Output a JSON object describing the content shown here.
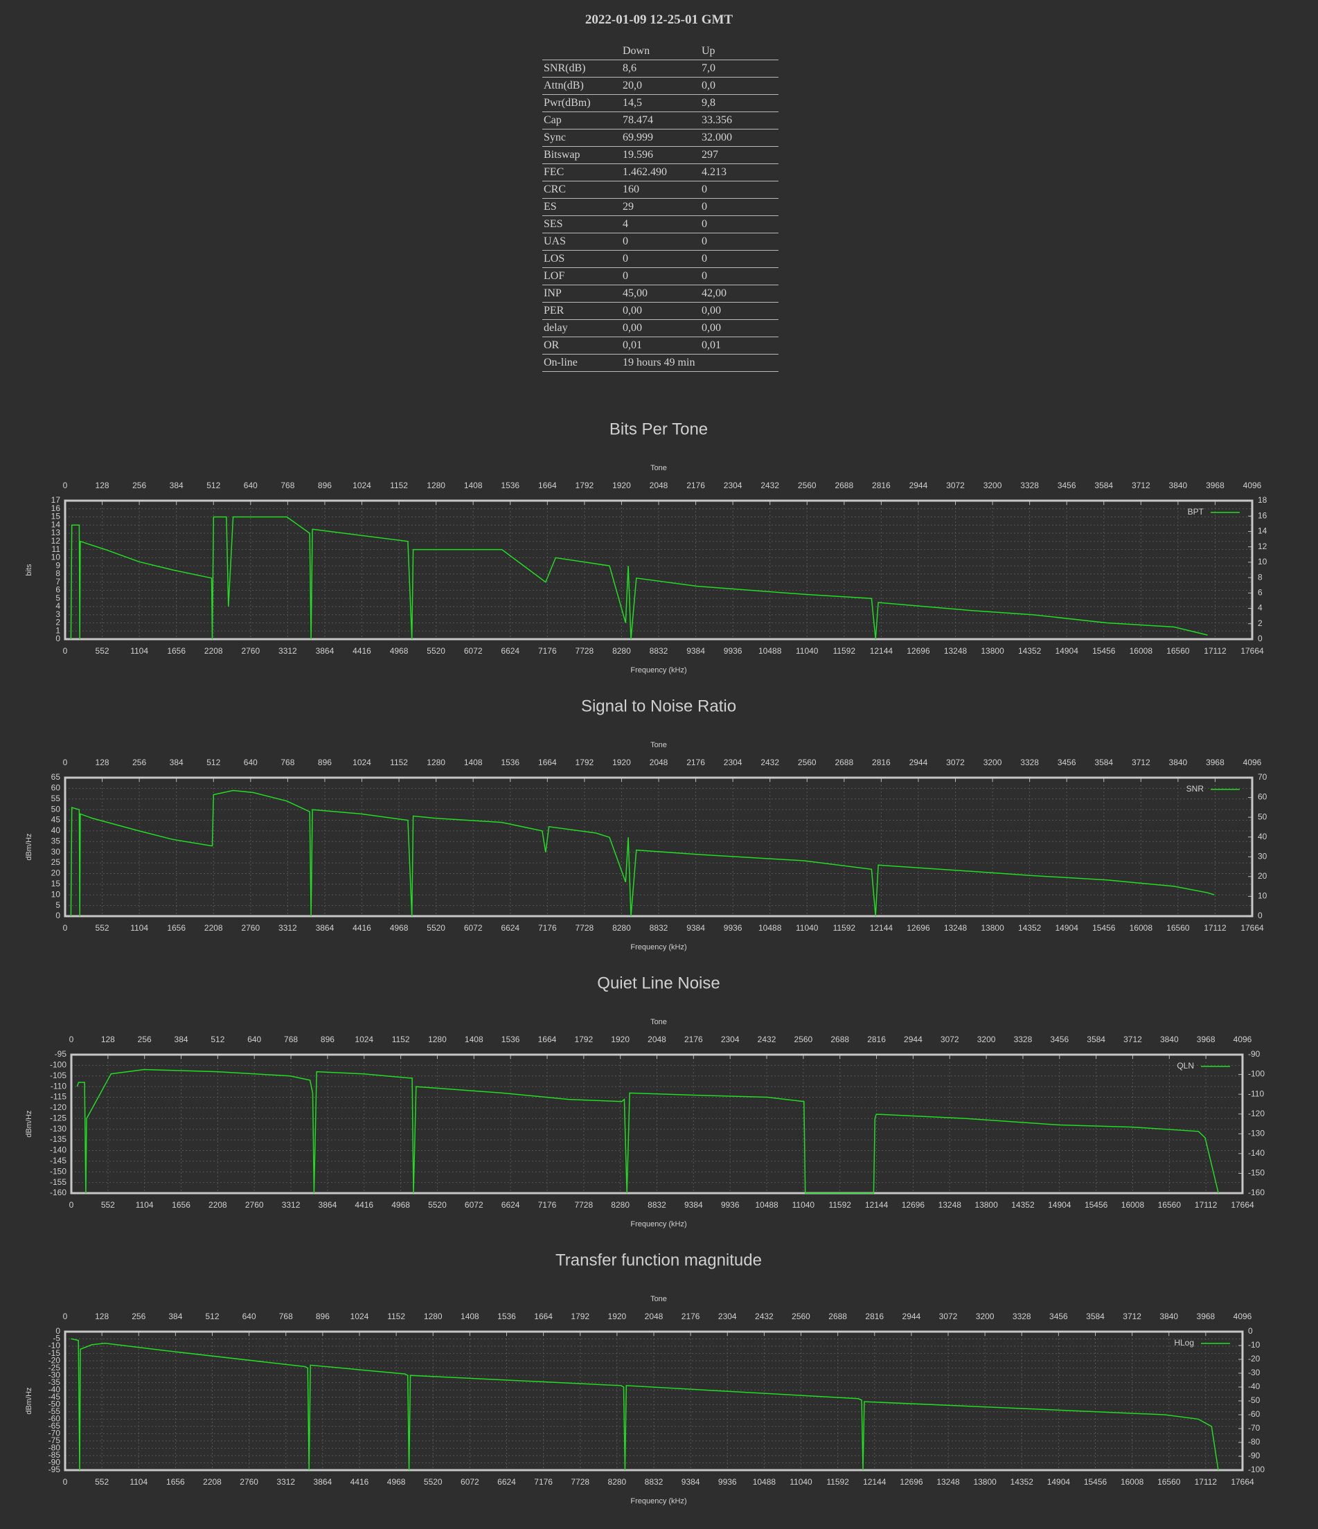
{
  "title": "2022-01-09 12-25-01 GMT",
  "table": {
    "columns": [
      "Down",
      "Up"
    ],
    "rows": [
      [
        "SNR(dB)",
        "8,6",
        "7,0"
      ],
      [
        "Attn(dB)",
        "20,0",
        "0,0"
      ],
      [
        "Pwr(dBm)",
        "14,5",
        "9,8"
      ],
      [
        "Cap",
        "78.474",
        "33.356"
      ],
      [
        "Sync",
        "69.999",
        "32.000"
      ],
      [
        "Bitswap",
        "19.596",
        "297"
      ],
      [
        "FEC",
        "1.462.490",
        "4.213"
      ],
      [
        "CRC",
        "160",
        "0"
      ],
      [
        "ES",
        "29",
        "0"
      ],
      [
        "SES",
        "4",
        "0"
      ],
      [
        "UAS",
        "0",
        "0"
      ],
      [
        "LOS",
        "0",
        "0"
      ],
      [
        "LOF",
        "0",
        "0"
      ],
      [
        "INP",
        "45,00",
        "42,00"
      ],
      [
        "PER",
        "0,00",
        "0,00"
      ],
      [
        "delay",
        "0,00",
        "0,00"
      ],
      [
        "OR",
        "0,01",
        "0,01"
      ],
      [
        "On-line",
        "19 hours 49 min"
      ]
    ]
  },
  "chart_data": [
    {
      "type": "line",
      "title": "Bits Per Tone",
      "xlabel": "Frequency (kHz)",
      "x2label": "Tone",
      "ylabel": "bits",
      "legend": "top-right",
      "grid": true,
      "xlim": [
        0,
        17664
      ],
      "xticks": [
        0,
        552,
        1104,
        1656,
        2208,
        2760,
        3312,
        3864,
        4416,
        4968,
        5520,
        6072,
        6624,
        7176,
        7728,
        8280,
        8832,
        9384,
        9936,
        10488,
        11040,
        11592,
        12144,
        12696,
        13248,
        13800,
        14352,
        14904,
        15456,
        16008,
        16560,
        17112,
        17664
      ],
      "x2lim": [
        0,
        4096
      ],
      "x2ticks": [
        0,
        128,
        256,
        384,
        512,
        640,
        768,
        896,
        1024,
        1152,
        1280,
        1408,
        1536,
        1664,
        1792,
        1920,
        2048,
        2176,
        2304,
        2432,
        2560,
        2688,
        2816,
        2944,
        3072,
        3200,
        3328,
        3456,
        3584,
        3712,
        3840,
        3968,
        4096
      ],
      "ylim": [
        0,
        17
      ],
      "yticks": [
        0,
        1,
        2,
        3,
        4,
        5,
        6,
        7,
        8,
        9,
        10,
        11,
        12,
        13,
        14,
        15,
        16,
        17
      ],
      "y2lim": [
        0,
        18
      ],
      "y2ticks": [
        0,
        2,
        4,
        6,
        8,
        10,
        12,
        14,
        16,
        18
      ],
      "x": [
        87,
        100,
        210,
        218,
        226,
        600,
        1100,
        1600,
        2180,
        2190,
        2208,
        2400,
        2430,
        2500,
        3300,
        3640,
        3660,
        3680,
        5100,
        5160,
        5180,
        6500,
        7150,
        7300,
        8100,
        8340,
        8380,
        8420,
        8500,
        9400,
        11000,
        12000,
        12060,
        12100,
        13500,
        14400,
        15500,
        16500,
        17000
      ],
      "series": [
        {
          "name": "BPT",
          "color": "#22dd22",
          "values": [
            0,
            14,
            14,
            0,
            12,
            11,
            9.5,
            8.5,
            7.5,
            0,
            15,
            15,
            4,
            15,
            15,
            13,
            0,
            13.5,
            12,
            0,
            11,
            11,
            7,
            10,
            9,
            2,
            9,
            0,
            7.5,
            6.5,
            5.5,
            5,
            0,
            4.5,
            3.5,
            3,
            2,
            1.5,
            0.5
          ]
        }
      ]
    },
    {
      "type": "line",
      "title": "Signal to Noise Ratio",
      "xlabel": "Frequency (kHz)",
      "x2label": "Tone",
      "ylabel": "dBm/Hz",
      "legend": "top-right",
      "grid": true,
      "xlim": [
        0,
        17664
      ],
      "xticks": [
        0,
        552,
        1104,
        1656,
        2208,
        2760,
        3312,
        3864,
        4416,
        4968,
        5520,
        6072,
        6624,
        7176,
        7728,
        8280,
        8832,
        9384,
        9936,
        10488,
        11040,
        11592,
        12144,
        12696,
        13248,
        13800,
        14352,
        14904,
        15456,
        16008,
        16560,
        17112,
        17664
      ],
      "x2lim": [
        0,
        4096
      ],
      "x2ticks": [
        0,
        128,
        256,
        384,
        512,
        640,
        768,
        896,
        1024,
        1152,
        1280,
        1408,
        1536,
        1664,
        1792,
        1920,
        2048,
        2176,
        2304,
        2432,
        2560,
        2688,
        2816,
        2944,
        3072,
        3200,
        3328,
        3456,
        3584,
        3712,
        3840,
        3968,
        4096
      ],
      "ylim": [
        0,
        65
      ],
      "yticks": [
        0,
        5,
        10,
        15,
        20,
        25,
        30,
        35,
        40,
        45,
        50,
        55,
        60,
        65
      ],
      "y2lim": [
        0,
        70
      ],
      "y2ticks": [
        0,
        10,
        20,
        30,
        40,
        50,
        60,
        70
      ],
      "x": [
        87,
        100,
        210,
        218,
        226,
        400,
        1100,
        1600,
        2180,
        2190,
        2208,
        2500,
        2800,
        3300,
        3640,
        3660,
        3680,
        4400,
        5100,
        5160,
        5180,
        5500,
        6500,
        7100,
        7150,
        7200,
        7900,
        8100,
        8340,
        8380,
        8420,
        8500,
        9400,
        11000,
        12000,
        12060,
        12100,
        13500,
        14400,
        15500,
        16500,
        17000,
        17100
      ],
      "series": [
        {
          "name": "SNR",
          "color": "#22dd22",
          "values": [
            0,
            51,
            50,
            0,
            48,
            46,
            40,
            36,
            33,
            33,
            57,
            59,
            58,
            54,
            49,
            0,
            50,
            48,
            45,
            0,
            47,
            46,
            44,
            40,
            30,
            42,
            39,
            37,
            16,
            37,
            0,
            31,
            29,
            26,
            22,
            0,
            24,
            21,
            19,
            17,
            14,
            11,
            10
          ]
        }
      ]
    },
    {
      "type": "line",
      "title": "Quiet Line Noise",
      "xlabel": "Frequency (kHz)",
      "x2label": "Tone",
      "ylabel": "dBm/Hz",
      "legend": "top-right",
      "grid": true,
      "xlim": [
        0,
        17664
      ],
      "xticks": [
        0,
        552,
        1104,
        1656,
        2208,
        2760,
        3312,
        3864,
        4416,
        4968,
        5520,
        6072,
        6624,
        7176,
        7728,
        8280,
        8832,
        9384,
        9936,
        10488,
        11040,
        11592,
        12144,
        12696,
        13248,
        13800,
        14352,
        14904,
        15456,
        16008,
        16560,
        17112,
        17664
      ],
      "x2lim": [
        0,
        4096
      ],
      "x2ticks": [
        0,
        128,
        256,
        384,
        512,
        640,
        768,
        896,
        1024,
        1152,
        1280,
        1408,
        1536,
        1664,
        1792,
        1920,
        2048,
        2176,
        2304,
        2432,
        2560,
        2688,
        2816,
        2944,
        3072,
        3200,
        3328,
        3456,
        3584,
        3712,
        3840,
        3968,
        4096
      ],
      "ylim": [
        -160,
        -95
      ],
      "yticks": [
        -95,
        -100,
        -105,
        -110,
        -115,
        -120,
        -125,
        -130,
        -135,
        -140,
        -145,
        -150,
        -155,
        -160
      ],
      "y2lim": [
        -160,
        -90
      ],
      "y2ticks": [
        -90,
        -100,
        -110,
        -120,
        -130,
        -140,
        -150,
        -160
      ],
      "x": [
        87,
        110,
        200,
        218,
        230,
        600,
        1100,
        2200,
        3300,
        3600,
        3640,
        3660,
        3700,
        4400,
        5100,
        5140,
        5160,
        5200,
        6500,
        7500,
        8300,
        8340,
        8380,
        8420,
        9400,
        10500,
        11050,
        11070,
        12100,
        12120,
        12140,
        12200,
        13500,
        14900,
        16000,
        17000,
        17100,
        17300
      ],
      "series": [
        {
          "name": "QLN",
          "color": "#22dd22",
          "values": [
            -110,
            -108,
            -108,
            -160,
            -125,
            -104,
            -102,
            -103,
            -105,
            -107,
            -113,
            -160,
            -103,
            -104,
            -106,
            -106,
            -160,
            -110,
            -113,
            -116,
            -117,
            -116,
            -160,
            -113,
            -114,
            -115,
            -117,
            -160,
            -160,
            -125,
            -123,
            -123,
            -125,
            -128,
            -129,
            -131,
            -134,
            -160
          ]
        }
      ]
    },
    {
      "type": "line",
      "title": "Transfer function magnitude",
      "xlabel": "Frequency (kHz)",
      "x2label": "Tone",
      "ylabel": "dBm/Hz",
      "legend": "top-right",
      "grid": true,
      "xlim": [
        0,
        17664
      ],
      "xticks": [
        0,
        552,
        1104,
        1656,
        2208,
        2760,
        3312,
        3864,
        4416,
        4968,
        5520,
        6072,
        6624,
        7176,
        7728,
        8280,
        8832,
        9384,
        9936,
        10488,
        11040,
        11592,
        12144,
        12696,
        13248,
        13800,
        14352,
        14904,
        15456,
        16008,
        16560,
        17112,
        17664
      ],
      "x2lim": [
        0,
        4096
      ],
      "x2ticks": [
        0,
        128,
        256,
        384,
        512,
        640,
        768,
        896,
        1024,
        1152,
        1280,
        1408,
        1536,
        1664,
        1792,
        1920,
        2048,
        2176,
        2304,
        2432,
        2560,
        2688,
        2816,
        2944,
        3072,
        3200,
        3328,
        3456,
        3584,
        3712,
        3840,
        3968,
        4096
      ],
      "ylim": [
        -95,
        0
      ],
      "yticks": [
        0,
        -5,
        -10,
        -15,
        -20,
        -25,
        -30,
        -35,
        -40,
        -45,
        -50,
        -55,
        -60,
        -65,
        -70,
        -75,
        -80,
        -85,
        -90,
        -95
      ],
      "y2lim": [
        -100,
        0
      ],
      "y2ticks": [
        0,
        -10,
        -20,
        -30,
        -40,
        -50,
        -60,
        -70,
        -80,
        -90,
        -100
      ],
      "x": [
        87,
        100,
        200,
        218,
        230,
        400,
        600,
        1500,
        3600,
        3640,
        3660,
        3680,
        5100,
        5140,
        5160,
        5180,
        8340,
        8380,
        8400,
        8420,
        11900,
        11950,
        11970,
        11990,
        16500,
        17000,
        17200,
        17300
      ],
      "series": [
        {
          "name": "HLog",
          "color": "#22dd22",
          "values": [
            -5,
            -5,
            -6,
            -95,
            -12,
            -9,
            -8,
            -13,
            -24,
            -25,
            -95,
            -23,
            -29,
            -30,
            -95,
            -30,
            -37,
            -38,
            -95,
            -37,
            -46,
            -47,
            -95,
            -48,
            -57,
            -60,
            -65,
            -95
          ]
        }
      ]
    }
  ]
}
